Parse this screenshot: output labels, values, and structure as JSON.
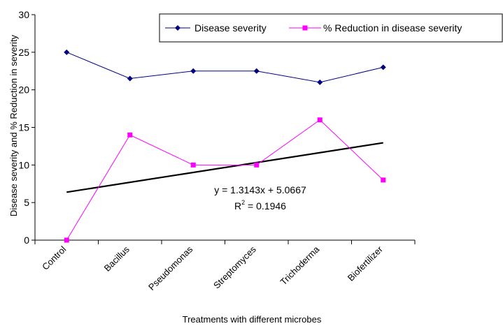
{
  "chart_data": {
    "type": "line",
    "xlabel": "Treatments with different microbes",
    "ylabel": "Disease severity and % Reduction in severity",
    "ylim": [
      0,
      30
    ],
    "yticks": [
      0,
      5,
      10,
      15,
      20,
      25,
      30
    ],
    "categories": [
      "Control",
      "Bacillus",
      "Pseudomonas",
      "Streptomyces",
      "Trichoderma",
      "Biofertilizer"
    ],
    "series": [
      {
        "name": "Disease severity",
        "color": "#000080",
        "marker": "diamond",
        "values": [
          25,
          21.5,
          22.5,
          22.5,
          21,
          23
        ]
      },
      {
        "name": "% Reduction in disease severity",
        "color": "#FF00FF",
        "marker": "square",
        "values": [
          0,
          14,
          10,
          10,
          16,
          8
        ]
      }
    ],
    "trendline": {
      "color": "#000000",
      "slope": 1.3143,
      "intercept": 5.0667,
      "equation": "y = 1.3143x + 5.0667",
      "r2_prefix": "R",
      "r2_sup": "2",
      "r2_value": " = 0.1946"
    },
    "legend_position": "top-right",
    "grid": false
  }
}
